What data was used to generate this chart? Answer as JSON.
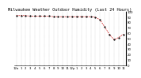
{
  "title": "Milwaukee Weather Outdoor Humidity (Last 24 Hours)",
  "ylim": [
    0,
    100
  ],
  "background_color": "#ffffff",
  "line_color": "#cc0000",
  "marker_color": "#000000",
  "grid_color": "#888888",
  "title_fontsize": 3.8,
  "tick_fontsize": 2.8,
  "humidity_values": [
    93,
    93,
    93,
    92,
    92,
    92,
    92,
    92,
    91,
    91,
    91,
    91,
    91,
    91,
    91,
    91,
    91,
    90,
    85,
    72,
    58,
    48,
    52,
    58
  ],
  "x_tick_labels": [
    "12a",
    "1",
    "2",
    "3",
    "4",
    "5",
    "6",
    "7",
    "8",
    "9",
    "10",
    "11",
    "12p",
    "1",
    "2",
    "3",
    "4",
    "5",
    "6",
    "7",
    "8",
    "9",
    "10",
    "11"
  ],
  "y_tick_labels": [
    "100",
    "90",
    "80",
    "70",
    "60",
    "50",
    "40",
    "30",
    "20",
    "10",
    "0"
  ],
  "y_tick_values": [
    100,
    90,
    80,
    70,
    60,
    50,
    40,
    30,
    20,
    10,
    0
  ]
}
